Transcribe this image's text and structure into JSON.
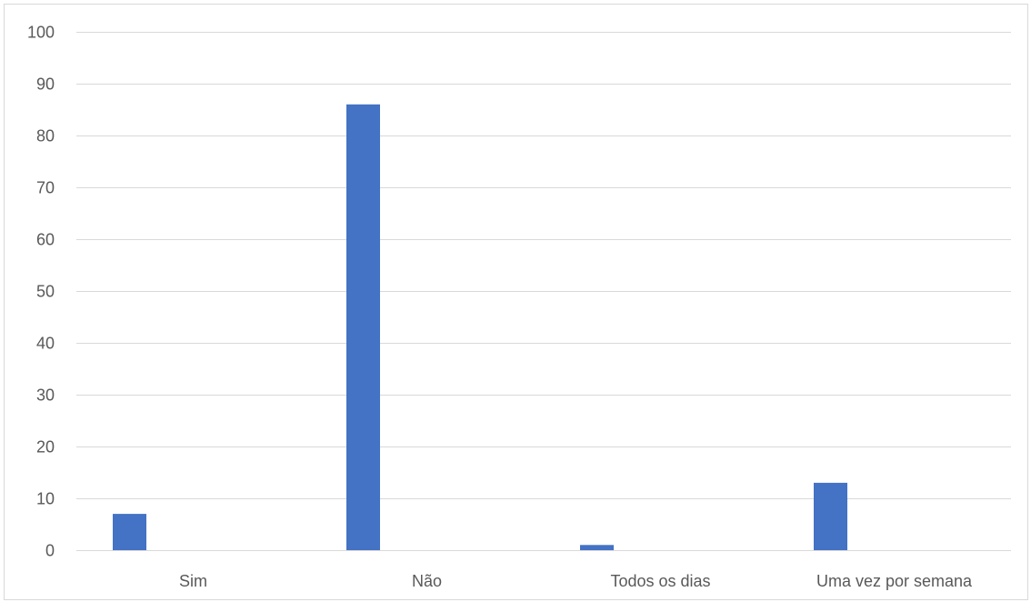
{
  "chart_data": {
    "type": "bar",
    "categories": [
      "Sim",
      "Não",
      "Todos os dias",
      "Uma vez por semana"
    ],
    "series": [
      {
        "values": [
          7,
          86,
          1,
          13
        ]
      }
    ],
    "ylim": [
      0,
      100
    ],
    "yticks": [
      0,
      10,
      20,
      30,
      40,
      50,
      60,
      70,
      80,
      90,
      100
    ],
    "grid": true,
    "legend": "none",
    "colors": {
      "bar": "#4472c4",
      "grid": "#d9d9d9",
      "text": "#595959"
    }
  }
}
